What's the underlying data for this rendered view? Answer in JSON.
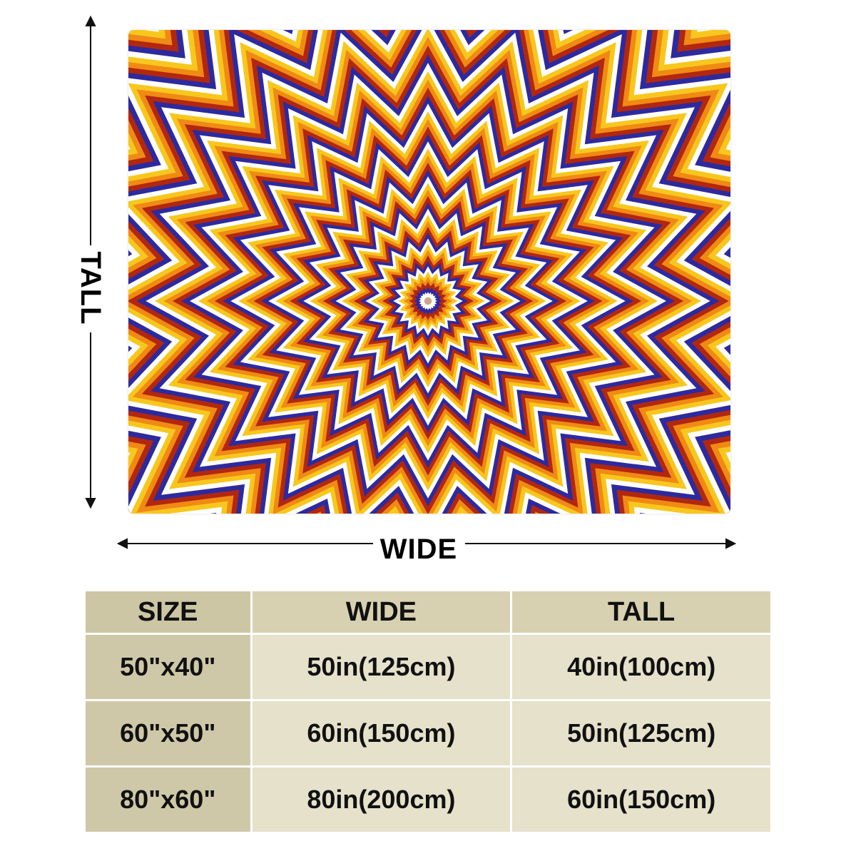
{
  "image": {
    "product": "psychedelic-zigzag-blanket",
    "colors": {
      "blue": "#2d2a9e",
      "white": "#ffffff",
      "yellow": "#f8c71e",
      "orange": "#f08a14",
      "red": "#b2270f",
      "table_header": "#d7d1b2",
      "table_body": "#e5e1cb",
      "table_first_col": "#cfc8a8"
    }
  },
  "dimensions": {
    "tall_label": "TALL",
    "wide_label": "WIDE"
  },
  "table": {
    "headers": [
      "SIZE",
      "WIDE",
      "TALL"
    ],
    "rows": [
      [
        "50\"x40\"",
        "50in(125cm)",
        "40in(100cm)"
      ],
      [
        "60\"x50\"",
        "60in(150cm)",
        "50in(125cm)"
      ],
      [
        "80\"x60\"",
        "80in(200cm)",
        "60in(150cm)"
      ]
    ]
  }
}
